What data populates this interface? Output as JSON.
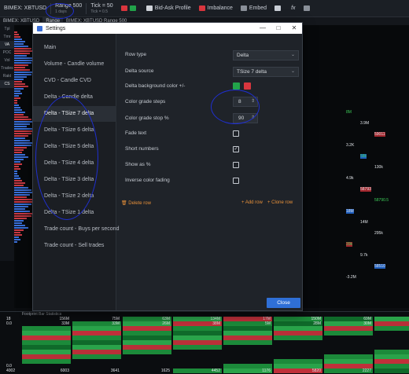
{
  "toolbar": {
    "symbol": "BIMEX: XBTUSD",
    "range_label": "Range 500",
    "range_sub": "1 days",
    "tick_label": "Tick = 50",
    "tick_sub": "Tick = 0.5",
    "bid_ask_profile": "Bid-Ask Profile",
    "imbalance": "Imbalance",
    "embed": "Embed",
    "fx": "fx"
  },
  "tabrow": {
    "tab1": "BIMEX: XBTUSD",
    "tab2": "Range",
    "tab3": "BIMEX: XBTUSD Range 500"
  },
  "rail": [
    "Tpl",
    "Tmr",
    "VA",
    "POC",
    "Vol",
    "Trades",
    "Rakt",
    "CS"
  ],
  "dialog": {
    "title": "Settings",
    "sidebar": [
      "Main",
      "Volume - Candle volume",
      "CVD - Candle CVD",
      "Delta - Candle delta",
      "Delta - TSize 7 delta",
      "Delta - TSize 6 delta",
      "Delta - TSize 5 delta",
      "Delta - TSize 4 delta",
      "Delta - TSize 3 delta",
      "Delta - TSize 2 delta",
      "Delta - TSize 1 delta",
      "Trade count - Buys per second",
      "Trade count - Sell trades"
    ],
    "active_index": 4,
    "props": {
      "row_type_label": "Row type",
      "row_type_value": "Delta",
      "delta_source_label": "Delta source",
      "delta_source_value": "TSize 7 delta",
      "delta_bg_label": "Delta background color +/-",
      "color_pos": "#22a34a",
      "color_neg": "#d9363e",
      "grade_steps_label": "Color grade steps",
      "grade_steps_value": "8",
      "grade_stop_label": "Color grade stop %",
      "grade_stop_value": "90",
      "fade_text_label": "Fade text",
      "fade_text_checked": false,
      "short_numbers_label": "Short numbers",
      "short_numbers_checked": true,
      "show_pct_label": "Show as %",
      "show_pct_checked": false,
      "inverse_fading_label": "Inverse color fading",
      "inverse_fading_checked": false
    },
    "delete_row": "Delete row",
    "add_row": "+ Add row",
    "clone_row": "+ Clone row",
    "close": "Close"
  },
  "bottom": {
    "header": "Footprint Bar Statistics",
    "row_labels": [
      "18",
      "0.0",
      "",
      "",
      "",
      "",
      "",
      "",
      "",
      "",
      "0.0",
      "4002"
    ],
    "col_tops": [
      "156M",
      "75M",
      "63M",
      "134M",
      "17M",
      "150M",
      "69M",
      "55M"
    ],
    "col_second": [
      "33M",
      "33M",
      "26M",
      "38M",
      "5M",
      "28M",
      "30M",
      "31M"
    ],
    "last_row": [
      "6003",
      "3641",
      "1625",
      "4452",
      "1176",
      "5820",
      "2227",
      ""
    ]
  },
  "right_chart": {
    "labels": [
      "8M",
      "3.9M",
      "59011",
      "3.2K",
      "58k",
      "130k",
      "4.9k",
      "58793",
      "58790.5",
      "18M",
      "14M",
      "295k",
      "20k",
      "9.7k",
      "58510",
      "-3.2M"
    ]
  }
}
